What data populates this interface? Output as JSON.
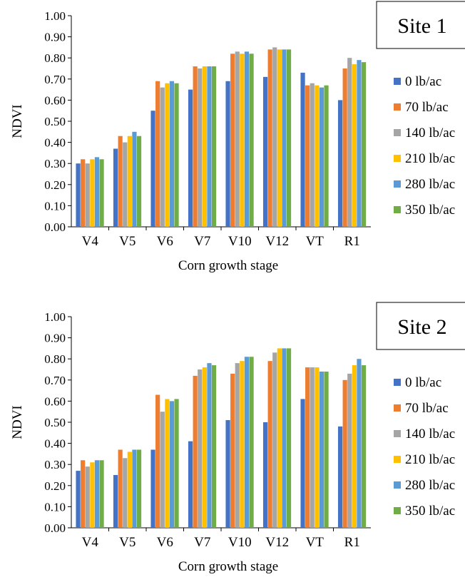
{
  "chart_data": [
    {
      "type": "bar",
      "title": "Site 1",
      "xlabel": "Corn growth stage",
      "ylabel": "NDVI",
      "ylim": [
        0,
        1.0
      ],
      "yticks": [
        "0.00",
        "0.10",
        "0.20",
        "0.30",
        "0.40",
        "0.50",
        "0.60",
        "0.70",
        "0.80",
        "0.90",
        "1.00"
      ],
      "categories": [
        "V4",
        "V5",
        "V6",
        "V7",
        "V10",
        "V12",
        "VT",
        "R1"
      ],
      "legend_position": "right",
      "series": [
        {
          "name": "0 lb/ac",
          "color": "#4472C4",
          "values": [
            0.3,
            0.37,
            0.55,
            0.65,
            0.69,
            0.71,
            0.73,
            0.6
          ]
        },
        {
          "name": "70 lb/ac",
          "color": "#ED7D31",
          "values": [
            0.32,
            0.43,
            0.69,
            0.76,
            0.82,
            0.84,
            0.67,
            0.75
          ]
        },
        {
          "name": "140 lb/ac",
          "color": "#A5A5A5",
          "values": [
            0.3,
            0.4,
            0.66,
            0.75,
            0.83,
            0.85,
            0.68,
            0.8
          ]
        },
        {
          "name": "210 lb/ac",
          "color": "#FFC000",
          "values": [
            0.32,
            0.43,
            0.68,
            0.76,
            0.82,
            0.84,
            0.67,
            0.77
          ]
        },
        {
          "name": "280 lb/ac",
          "color": "#5B9BD5",
          "values": [
            0.33,
            0.45,
            0.69,
            0.76,
            0.83,
            0.84,
            0.66,
            0.79
          ]
        },
        {
          "name": "350 lb/ac",
          "color": "#70AD47",
          "values": [
            0.32,
            0.43,
            0.68,
            0.76,
            0.82,
            0.84,
            0.67,
            0.78
          ]
        }
      ]
    },
    {
      "type": "bar",
      "title": "Site 2",
      "xlabel": "Corn growth stage",
      "ylabel": "NDVI",
      "ylim": [
        0,
        1.0
      ],
      "yticks": [
        "0.00",
        "0.10",
        "0.20",
        "0.30",
        "0.40",
        "0.50",
        "0.60",
        "0.70",
        "0.80",
        "0.90",
        "1.00"
      ],
      "categories": [
        "V4",
        "V5",
        "V6",
        "V7",
        "V10",
        "V12",
        "VT",
        "R1"
      ],
      "legend_position": "right",
      "series": [
        {
          "name": "0 lb/ac",
          "color": "#4472C4",
          "values": [
            0.27,
            0.25,
            0.37,
            0.41,
            0.51,
            0.5,
            0.61,
            0.48
          ]
        },
        {
          "name": "70 lb/ac",
          "color": "#ED7D31",
          "values": [
            0.32,
            0.37,
            0.63,
            0.72,
            0.73,
            0.79,
            0.76,
            0.7
          ]
        },
        {
          "name": "140 lb/ac",
          "color": "#A5A5A5",
          "values": [
            0.29,
            0.33,
            0.55,
            0.75,
            0.78,
            0.83,
            0.76,
            0.73
          ]
        },
        {
          "name": "210 lb/ac",
          "color": "#FFC000",
          "values": [
            0.31,
            0.36,
            0.61,
            0.76,
            0.79,
            0.85,
            0.76,
            0.77
          ]
        },
        {
          "name": "280 lb/ac",
          "color": "#5B9BD5",
          "values": [
            0.32,
            0.37,
            0.6,
            0.78,
            0.81,
            0.85,
            0.74,
            0.8
          ]
        },
        {
          "name": "350 lb/ac",
          "color": "#70AD47",
          "values": [
            0.32,
            0.37,
            0.61,
            0.77,
            0.81,
            0.85,
            0.74,
            0.77
          ]
        }
      ]
    }
  ]
}
